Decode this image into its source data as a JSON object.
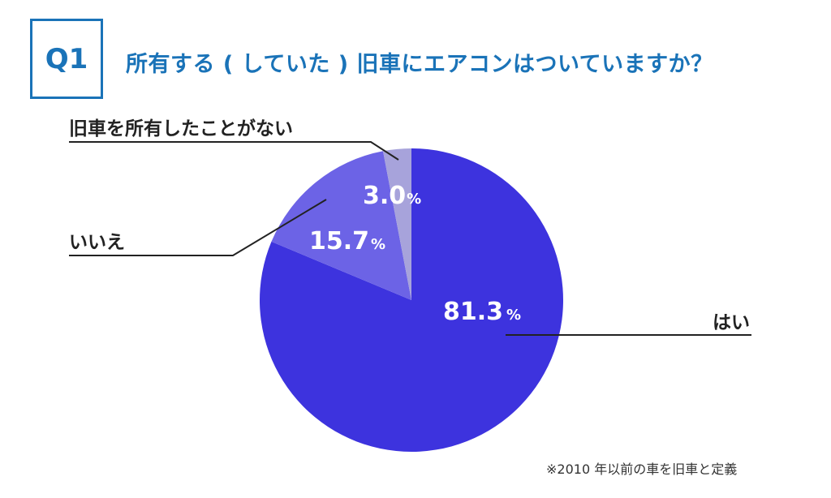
{
  "header": {
    "badge": "Q1",
    "title": "所有する ( していた ) 旧車にエアコンはついていますか？"
  },
  "footnote": "※2010 年以前の車を旧車と定義",
  "chart_data": {
    "type": "pie",
    "title": "所有する ( していた ) 旧車にエアコンはついていますか？",
    "start_angle": "12 o'clock, clockwise",
    "slices": [
      {
        "label": "はい",
        "value": 81.3,
        "display": "81.3",
        "color": "#3d33de"
      },
      {
        "label": "いいえ",
        "value": 15.7,
        "display": "15.7",
        "color": "#6c63e6"
      },
      {
        "label": "旧車を所有したことがない",
        "value": 3.0,
        "display": "3.0",
        "color": "#a7a3db"
      }
    ],
    "unit": "%"
  }
}
